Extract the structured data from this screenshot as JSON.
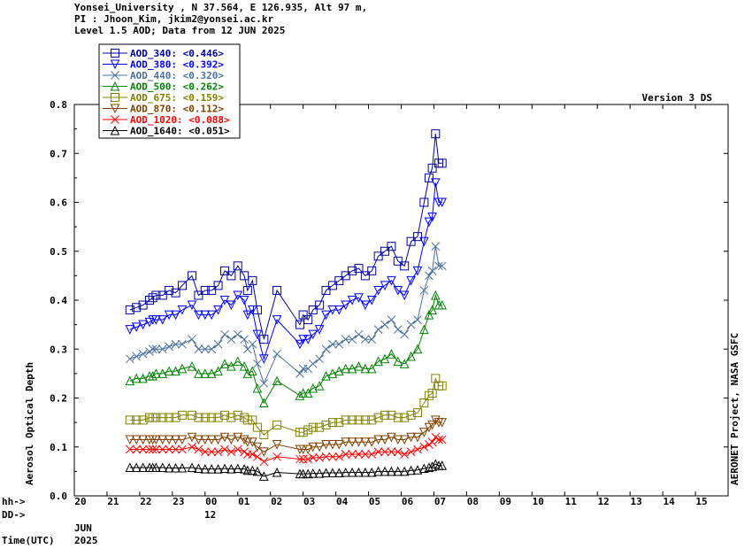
{
  "header": {
    "line1": "Yonsei_University , N 37.564, E 126.935, Alt 97 m,",
    "line2": "PI : Jhoon_Kim, jkim2@yonsei.ac.kr",
    "line3": "Level 1.5 AOD; Data from 12 JUN 2025"
  },
  "version_label": "Version 3 DS",
  "credit": "AERONET Project, NASA GSFC",
  "labels": {
    "hh": "hh->",
    "dd": "DD->",
    "time": "Time(UTC)",
    "month": "JUN",
    "year": "2025",
    "day": "12"
  },
  "chart_data": {
    "type": "scatter",
    "ylabel": "Aerosol Optical Depth",
    "ylim": [
      0.0,
      0.8
    ],
    "yticks": [
      "0.0",
      "0.1",
      "0.2",
      "0.3",
      "0.4",
      "0.5",
      "0.6",
      "0.7",
      "0.8"
    ],
    "xlim_hours": [
      -4,
      16
    ],
    "xticks": [
      "20",
      "21",
      "22",
      "23",
      "00",
      "01",
      "02",
      "03",
      "04",
      "05",
      "06",
      "07",
      "08",
      "09",
      "10",
      "11",
      "12",
      "13",
      "14",
      "15"
    ],
    "x_unit": "hour UTC on 12 JUN 2025 (negative = 11 JUN)",
    "x": [
      -2.3,
      -2.1,
      -1.9,
      -1.7,
      -1.6,
      -1.5,
      -1.3,
      -1.1,
      -0.9,
      -0.7,
      -0.4,
      -0.2,
      0.0,
      0.2,
      0.4,
      0.6,
      0.8,
      1.0,
      1.2,
      1.3,
      1.45,
      1.6,
      1.8,
      2.2,
      2.9,
      3.0,
      3.15,
      3.3,
      3.5,
      3.7,
      3.9,
      4.1,
      4.3,
      4.5,
      4.7,
      4.9,
      5.1,
      5.3,
      5.5,
      5.7,
      5.9,
      6.1,
      6.3,
      6.5,
      6.7,
      6.85,
      6.95,
      7.05,
      7.15,
      7.25
    ],
    "series": [
      {
        "name": "AOD_340: <0.446>",
        "color": "#0000a0",
        "marker": "square",
        "values": [
          0.38,
          0.385,
          0.39,
          0.4,
          0.405,
          0.41,
          0.41,
          0.42,
          0.415,
          0.43,
          0.45,
          0.41,
          0.42,
          0.42,
          0.43,
          0.46,
          0.45,
          0.47,
          0.45,
          0.42,
          0.44,
          0.38,
          0.32,
          0.42,
          0.35,
          0.37,
          0.36,
          0.38,
          0.39,
          0.42,
          0.43,
          0.44,
          0.45,
          0.46,
          0.465,
          0.45,
          0.46,
          0.49,
          0.5,
          0.51,
          0.48,
          0.47,
          0.52,
          0.53,
          0.6,
          0.65,
          0.67,
          0.74,
          0.68,
          0.68
        ]
      },
      {
        "name": "AOD_380: <0.392>",
        "color": "#0000ff",
        "marker": "tri-down",
        "values": [
          0.34,
          0.345,
          0.35,
          0.355,
          0.36,
          0.36,
          0.36,
          0.37,
          0.37,
          0.38,
          0.39,
          0.37,
          0.37,
          0.37,
          0.38,
          0.4,
          0.39,
          0.41,
          0.4,
          0.37,
          0.38,
          0.33,
          0.28,
          0.36,
          0.31,
          0.32,
          0.32,
          0.33,
          0.34,
          0.37,
          0.38,
          0.38,
          0.39,
          0.4,
          0.405,
          0.39,
          0.4,
          0.42,
          0.43,
          0.44,
          0.42,
          0.41,
          0.44,
          0.46,
          0.52,
          0.56,
          0.57,
          0.64,
          0.6,
          0.6
        ]
      },
      {
        "name": "AOD_440: <0.320>",
        "color": "#4a70a0",
        "marker": "x",
        "values": [
          0.28,
          0.285,
          0.29,
          0.295,
          0.3,
          0.3,
          0.3,
          0.305,
          0.31,
          0.31,
          0.32,
          0.3,
          0.3,
          0.3,
          0.31,
          0.33,
          0.32,
          0.33,
          0.32,
          0.3,
          0.31,
          0.27,
          0.23,
          0.29,
          0.25,
          0.26,
          0.26,
          0.27,
          0.28,
          0.3,
          0.31,
          0.31,
          0.32,
          0.32,
          0.33,
          0.32,
          0.32,
          0.34,
          0.35,
          0.36,
          0.34,
          0.33,
          0.35,
          0.36,
          0.42,
          0.45,
          0.46,
          0.51,
          0.47,
          0.47
        ]
      },
      {
        "name": "AOD_500: <0.262>",
        "color": "#008000",
        "marker": "tri-up",
        "values": [
          0.235,
          0.24,
          0.24,
          0.245,
          0.245,
          0.25,
          0.25,
          0.255,
          0.255,
          0.26,
          0.265,
          0.25,
          0.25,
          0.25,
          0.255,
          0.27,
          0.265,
          0.275,
          0.265,
          0.25,
          0.255,
          0.22,
          0.19,
          0.235,
          0.205,
          0.21,
          0.21,
          0.22,
          0.225,
          0.245,
          0.25,
          0.255,
          0.26,
          0.26,
          0.265,
          0.26,
          0.26,
          0.275,
          0.28,
          0.29,
          0.275,
          0.27,
          0.285,
          0.3,
          0.34,
          0.37,
          0.38,
          0.41,
          0.39,
          0.39
        ]
      },
      {
        "name": "AOD_675: <0.159>",
        "color": "#808000",
        "marker": "square",
        "values": [
          0.155,
          0.155,
          0.155,
          0.16,
          0.16,
          0.16,
          0.16,
          0.16,
          0.16,
          0.165,
          0.165,
          0.16,
          0.16,
          0.16,
          0.16,
          0.165,
          0.16,
          0.165,
          0.16,
          0.155,
          0.155,
          0.14,
          0.125,
          0.145,
          0.13,
          0.13,
          0.135,
          0.14,
          0.14,
          0.145,
          0.15,
          0.15,
          0.155,
          0.155,
          0.155,
          0.155,
          0.155,
          0.16,
          0.165,
          0.165,
          0.16,
          0.16,
          0.165,
          0.17,
          0.19,
          0.205,
          0.21,
          0.24,
          0.225,
          0.225
        ]
      },
      {
        "name": "AOD_870: <0.112>",
        "color": "#804000",
        "marker": "tri-down",
        "values": [
          0.115,
          0.115,
          0.115,
          0.115,
          0.115,
          0.115,
          0.115,
          0.115,
          0.115,
          0.115,
          0.12,
          0.115,
          0.115,
          0.115,
          0.115,
          0.12,
          0.115,
          0.12,
          0.115,
          0.11,
          0.11,
          0.1,
          0.09,
          0.105,
          0.095,
          0.095,
          0.095,
          0.1,
          0.1,
          0.105,
          0.105,
          0.105,
          0.11,
          0.11,
          0.11,
          0.11,
          0.11,
          0.115,
          0.115,
          0.12,
          0.115,
          0.115,
          0.12,
          0.12,
          0.13,
          0.14,
          0.145,
          0.155,
          0.15,
          0.15
        ]
      },
      {
        "name": "AOD_1020: <0.088>",
        "color": "#ff0000",
        "marker": "x",
        "values": [
          0.095,
          0.095,
          0.095,
          0.095,
          0.095,
          0.095,
          0.095,
          0.095,
          0.095,
          0.095,
          0.1,
          0.095,
          0.09,
          0.09,
          0.09,
          0.095,
          0.09,
          0.095,
          0.09,
          0.085,
          0.085,
          0.08,
          0.07,
          0.08,
          0.075,
          0.075,
          0.075,
          0.078,
          0.078,
          0.08,
          0.08,
          0.08,
          0.085,
          0.085,
          0.085,
          0.085,
          0.085,
          0.09,
          0.09,
          0.09,
          0.09,
          0.085,
          0.09,
          0.095,
          0.1,
          0.105,
          0.11,
          0.12,
          0.115,
          0.115
        ]
      },
      {
        "name": "AOD_1640: <0.051>",
        "color": "#000000",
        "marker": "tri-up",
        "values": [
          0.058,
          0.058,
          0.058,
          0.058,
          0.058,
          0.058,
          0.058,
          0.057,
          0.057,
          0.057,
          0.058,
          0.056,
          0.055,
          0.055,
          0.055,
          0.056,
          0.055,
          0.056,
          0.055,
          0.052,
          0.052,
          0.05,
          0.04,
          0.048,
          0.045,
          0.045,
          0.045,
          0.046,
          0.046,
          0.047,
          0.047,
          0.047,
          0.048,
          0.048,
          0.048,
          0.048,
          0.048,
          0.05,
          0.05,
          0.05,
          0.05,
          0.05,
          0.052,
          0.053,
          0.056,
          0.058,
          0.06,
          0.065,
          0.062,
          0.062
        ]
      }
    ],
    "legend_position": "top-left",
    "grid": false
  }
}
